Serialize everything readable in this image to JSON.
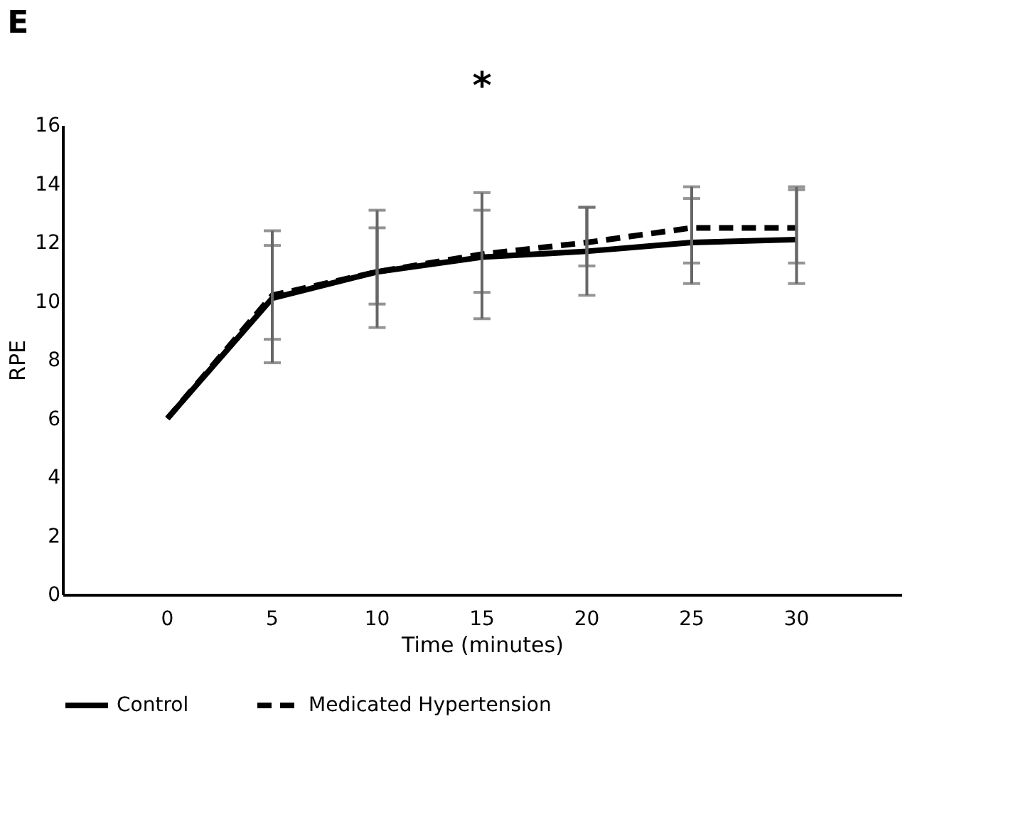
{
  "chart_data": {
    "type": "line",
    "title": "E",
    "xlabel": "Time (minutes)",
    "ylabel": "RPE",
    "categories": [
      "0",
      "5",
      "10",
      "15",
      "20",
      "25",
      "30"
    ],
    "series": [
      {
        "name": "Control",
        "color": "#000000",
        "line_style": "solid",
        "values": [
          6,
          10.1,
          11.0,
          11.5,
          11.7,
          12.0,
          12.1
        ],
        "errors": [
          null,
          [
            7.9,
            12.4
          ],
          [
            9.1,
            13.1
          ],
          [
            9.4,
            13.7
          ],
          [
            10.2,
            13.2
          ],
          [
            10.6,
            13.9
          ],
          [
            10.6,
            13.9
          ]
        ]
      },
      {
        "name": "Medicated Hypertension",
        "color": "#000000",
        "line_style": "dashed",
        "values": [
          6,
          10.2,
          11.0,
          11.6,
          12.0,
          12.5,
          12.5
        ],
        "errors": [
          null,
          [
            8.7,
            11.9
          ],
          [
            9.9,
            12.5
          ],
          [
            10.3,
            13.1
          ],
          [
            11.2,
            13.2
          ],
          [
            11.3,
            13.5
          ],
          [
            11.3,
            13.8
          ]
        ]
      }
    ],
    "ylim": [
      0,
      16
    ],
    "yticks": [
      0,
      2,
      4,
      6,
      8,
      10,
      12,
      14,
      16
    ],
    "annotations": [
      "*"
    ],
    "grid": false,
    "legend": "bottom",
    "marker": "none"
  }
}
